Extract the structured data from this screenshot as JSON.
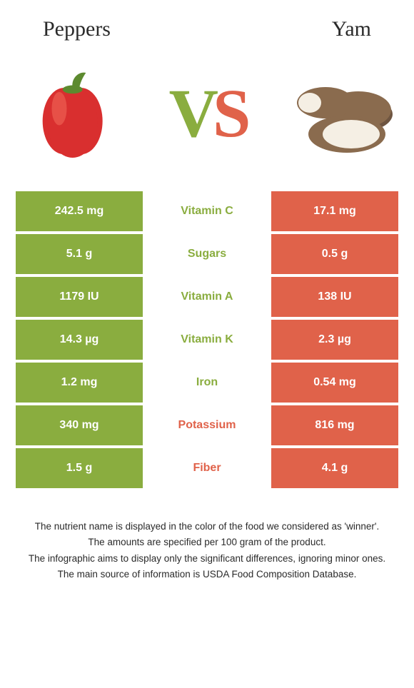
{
  "header": {
    "left_title": "Peppers",
    "right_title": "Yam"
  },
  "vs": {
    "v": "V",
    "s": "S"
  },
  "colors": {
    "left": "#8aad3f",
    "right": "#e0624a",
    "background": "#ffffff"
  },
  "rows": [
    {
      "label": "Vitamin C",
      "left": "242.5 mg",
      "right": "17.1 mg",
      "winner": "left"
    },
    {
      "label": "Sugars",
      "left": "5.1 g",
      "right": "0.5 g",
      "winner": "left"
    },
    {
      "label": "Vitamin A",
      "left": "1179 IU",
      "right": "138 IU",
      "winner": "left"
    },
    {
      "label": "Vitamin K",
      "left": "14.3 µg",
      "right": "2.3 µg",
      "winner": "left"
    },
    {
      "label": "Iron",
      "left": "1.2 mg",
      "right": "0.54 mg",
      "winner": "left"
    },
    {
      "label": "Potassium",
      "left": "340 mg",
      "right": "816 mg",
      "winner": "right"
    },
    {
      "label": "Fiber",
      "left": "1.5 g",
      "right": "4.1 g",
      "winner": "right"
    }
  ],
  "footnotes": [
    "The nutrient name is displayed in the color of the food we considered as 'winner'.",
    "The amounts are specified per 100 gram of the product.",
    "The infographic aims to display only the significant differences, ignoring minor ones.",
    "The main source of information is USDA Food Composition Database."
  ]
}
